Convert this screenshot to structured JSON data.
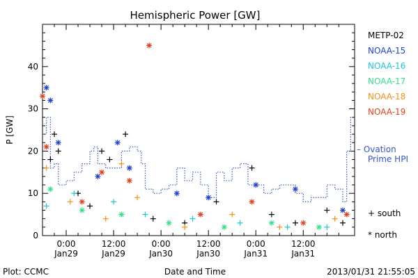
{
  "chart_data": {
    "type": "scatter",
    "title": "Hemispheric Power [GW]",
    "ylabel": "P [GW]",
    "xlabel": "Date and Time",
    "ylim": [
      0,
      50
    ],
    "xlim_hours": [
      -6,
      73
    ],
    "y_ticks": [
      0,
      10,
      20,
      30,
      40
    ],
    "x_ticks": [
      {
        "h": 0,
        "time": "0:00",
        "date": "Jan29"
      },
      {
        "h": 12,
        "time": "12:00",
        "date": "Jan29"
      },
      {
        "h": 24,
        "time": "0:00",
        "date": "Jan30"
      },
      {
        "h": 36,
        "time": "12:00",
        "date": "Jan30"
      },
      {
        "h": 48,
        "time": "0:00",
        "date": "Jan31"
      },
      {
        "h": 60,
        "time": "12:00",
        "date": "Jan31"
      }
    ],
    "legend_position": "right",
    "series": [
      {
        "name": "METP-02",
        "color": "#000000"
      },
      {
        "name": "NOAA-15",
        "color": "#1f3fcf"
      },
      {
        "name": "NOAA-16",
        "color": "#19c6d9"
      },
      {
        "name": "NOAA-17",
        "color": "#33e08a"
      },
      {
        "name": "NOAA-18",
        "color": "#f29019"
      },
      {
        "name": "NOAA-19",
        "color": "#e0401c"
      }
    ],
    "ovation": {
      "name": "Ovation Prime HPI",
      "label_line1": "Ovation",
      "label_line2": "Prime HPI",
      "color": "#3355cc",
      "steps": [
        [
          -6,
          24
        ],
        [
          -5,
          28
        ],
        [
          -4,
          16
        ],
        [
          -3,
          17
        ],
        [
          -2,
          12
        ],
        [
          0,
          13
        ],
        [
          2,
          15
        ],
        [
          4,
          17
        ],
        [
          6,
          20
        ],
        [
          7,
          21
        ],
        [
          8,
          17
        ],
        [
          10,
          16
        ],
        [
          12,
          16
        ],
        [
          14,
          20
        ],
        [
          16,
          21
        ],
        [
          18,
          20
        ],
        [
          19,
          17
        ],
        [
          20,
          11
        ],
        [
          22,
          10
        ],
        [
          24,
          11
        ],
        [
          26,
          12
        ],
        [
          28,
          16
        ],
        [
          30,
          13
        ],
        [
          32,
          15
        ],
        [
          34,
          12
        ],
        [
          36,
          9
        ],
        [
          38,
          15
        ],
        [
          40,
          13
        ],
        [
          42,
          16
        ],
        [
          44,
          17
        ],
        [
          46,
          12
        ],
        [
          48,
          12
        ],
        [
          50,
          10
        ],
        [
          52,
          11
        ],
        [
          54,
          12
        ],
        [
          56,
          12
        ],
        [
          58,
          10
        ],
        [
          60,
          8
        ],
        [
          62,
          9
        ],
        [
          64,
          9
        ],
        [
          66,
          12
        ],
        [
          68,
          11
        ],
        [
          70,
          8
        ],
        [
          71,
          20
        ],
        [
          72,
          28
        ]
      ]
    },
    "points": [
      {
        "s": 0,
        "h": -4,
        "y": 18
      },
      {
        "s": 0,
        "h": -3,
        "y": 24
      },
      {
        "s": 0,
        "h": -2,
        "y": 20
      },
      {
        "s": 0,
        "h": 3,
        "y": 10
      },
      {
        "s": 0,
        "h": 6,
        "y": 7
      },
      {
        "s": 0,
        "h": 9,
        "y": 20
      },
      {
        "s": 0,
        "h": 11,
        "y": 18
      },
      {
        "s": 0,
        "h": 15,
        "y": 24
      },
      {
        "s": 0,
        "h": 22,
        "y": 4
      },
      {
        "s": 0,
        "h": 30,
        "y": 3
      },
      {
        "s": 0,
        "h": 38,
        "y": 8
      },
      {
        "s": 0,
        "h": 47,
        "y": 16
      },
      {
        "s": 0,
        "h": 52,
        "y": 5
      },
      {
        "s": 0,
        "h": 58,
        "y": 3
      },
      {
        "s": 0,
        "h": 66,
        "y": 6
      },
      {
        "s": 0,
        "h": 70,
        "y": 3
      },
      {
        "s": 1,
        "h": -5,
        "y": 35
      },
      {
        "s": 1,
        "h": -4,
        "y": 32
      },
      {
        "s": 1,
        "h": -2,
        "y": 22
      },
      {
        "s": 1,
        "h": 8,
        "y": 14
      },
      {
        "s": 1,
        "h": 13,
        "y": 22
      },
      {
        "s": 1,
        "h": 16,
        "y": 16
      },
      {
        "s": 1,
        "h": 28,
        "y": 10
      },
      {
        "s": 1,
        "h": 36,
        "y": 9
      },
      {
        "s": 1,
        "h": 48,
        "y": 12
      },
      {
        "s": 1,
        "h": 58,
        "y": 11
      },
      {
        "s": 1,
        "h": 70,
        "y": 6
      },
      {
        "s": 2,
        "h": -5,
        "y": 7
      },
      {
        "s": 2,
        "h": 2,
        "y": 10
      },
      {
        "s": 2,
        "h": 12,
        "y": 8
      },
      {
        "s": 2,
        "h": 20,
        "y": 5
      },
      {
        "s": 2,
        "h": 32,
        "y": 4
      },
      {
        "s": 2,
        "h": 44,
        "y": 3
      },
      {
        "s": 2,
        "h": 56,
        "y": 2
      },
      {
        "s": 2,
        "h": 66,
        "y": 2
      },
      {
        "s": 3,
        "h": -4,
        "y": 11
      },
      {
        "s": 3,
        "h": 4,
        "y": 6
      },
      {
        "s": 3,
        "h": 14,
        "y": 5
      },
      {
        "s": 3,
        "h": 26,
        "y": 3
      },
      {
        "s": 3,
        "h": 40,
        "y": 2
      },
      {
        "s": 3,
        "h": 52,
        "y": 3
      },
      {
        "s": 3,
        "h": 64,
        "y": 2
      },
      {
        "s": 4,
        "h": -5,
        "y": 16
      },
      {
        "s": 4,
        "h": 1,
        "y": 8
      },
      {
        "s": 4,
        "h": 10,
        "y": 4
      },
      {
        "s": 4,
        "h": 14,
        "y": 17
      },
      {
        "s": 4,
        "h": 18,
        "y": 9
      },
      {
        "s": 4,
        "h": 30,
        "y": 2
      },
      {
        "s": 4,
        "h": 42,
        "y": 5
      },
      {
        "s": 4,
        "h": 54,
        "y": 2
      },
      {
        "s": 4,
        "h": 68,
        "y": 4
      },
      {
        "s": 5,
        "h": -6,
        "y": 33
      },
      {
        "s": 5,
        "h": -5,
        "y": 21
      },
      {
        "s": 5,
        "h": 4,
        "y": 8
      },
      {
        "s": 5,
        "h": 9,
        "y": 15
      },
      {
        "s": 5,
        "h": 16,
        "y": 13
      },
      {
        "s": 5,
        "h": 21,
        "y": 45
      },
      {
        "s": 5,
        "h": 34,
        "y": 5
      },
      {
        "s": 5,
        "h": 47,
        "y": 8
      },
      {
        "s": 5,
        "h": 60,
        "y": 3
      },
      {
        "s": 5,
        "h": 71,
        "y": 5
      }
    ],
    "south_label": "+ south",
    "north_label": "* north"
  },
  "footer": {
    "left": "Plot: CCMC",
    "right": "2013/01/31 21:55:05"
  }
}
